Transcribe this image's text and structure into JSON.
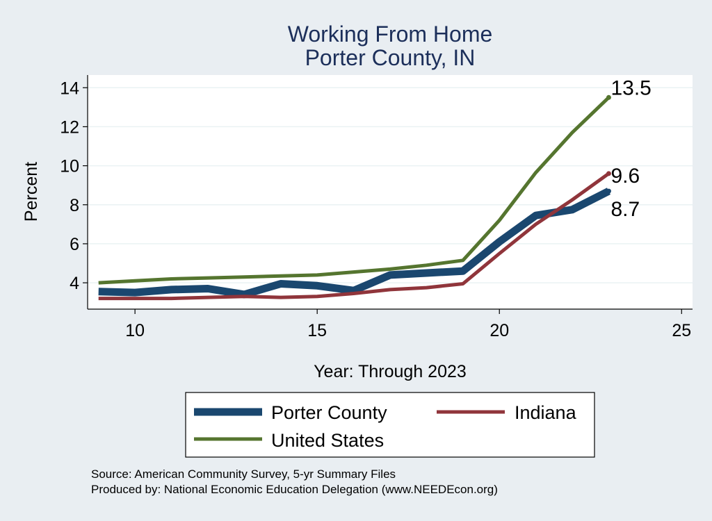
{
  "chart_data": {
    "type": "line",
    "title": [
      "Working From Home",
      "Porter County, IN"
    ],
    "xlabel": "Year: Through 2023",
    "ylabel": "Percent",
    "xlim": [
      8.7,
      25.3
    ],
    "ylim": [
      2.65,
      14.65
    ],
    "xticks": [
      10,
      15,
      20,
      25
    ],
    "yticks": [
      4,
      6,
      8,
      10,
      12,
      14
    ],
    "grid": true,
    "legend_position": "bottom",
    "x": [
      9,
      10,
      11,
      12,
      13,
      14,
      15,
      16,
      17,
      18,
      19,
      20,
      21,
      22,
      23
    ],
    "series": [
      {
        "name": "Porter County",
        "color": "#1a476f",
        "values": [
          3.55,
          3.5,
          3.65,
          3.7,
          3.4,
          3.95,
          3.85,
          3.6,
          4.4,
          4.5,
          4.6,
          6.1,
          7.45,
          7.75,
          8.7
        ],
        "end_label": "8.7"
      },
      {
        "name": "Indiana",
        "color": "#90353b",
        "values": [
          3.2,
          3.2,
          3.2,
          3.25,
          3.3,
          3.25,
          3.3,
          3.45,
          3.65,
          3.75,
          3.95,
          5.5,
          7.0,
          8.25,
          9.6
        ],
        "end_label": "9.6"
      },
      {
        "name": "United States",
        "color": "#55752f",
        "values": [
          4.0,
          4.1,
          4.2,
          4.25,
          4.3,
          4.35,
          4.4,
          4.55,
          4.7,
          4.9,
          5.15,
          7.2,
          9.65,
          11.7,
          13.5
        ],
        "end_label": "13.5"
      }
    ],
    "notes": [
      "Source: American Community Survey, 5-yr Summary Files",
      "Produced by: National Economic Education Delegation (www.NEEDEcon.org)"
    ]
  }
}
